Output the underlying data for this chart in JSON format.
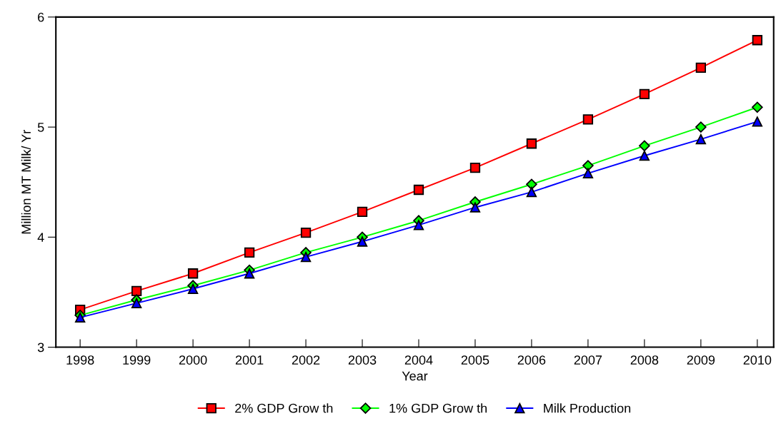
{
  "chart_data": {
    "type": "line",
    "xlabel": "Year",
    "ylabel": "Million MT Milk/ Yr",
    "categories": [
      "1998",
      "1999",
      "2000",
      "2001",
      "2002",
      "2003",
      "2004",
      "2005",
      "2006",
      "2007",
      "2008",
      "2009",
      "2010"
    ],
    "series": [
      {
        "name": "2% GDP Grow th",
        "color": "#ff0000",
        "marker": "square",
        "values": [
          3.34,
          3.51,
          3.67,
          3.86,
          4.04,
          4.23,
          4.43,
          4.63,
          4.85,
          5.07,
          5.3,
          5.54,
          5.79
        ]
      },
      {
        "name": "1% GDP Grow th",
        "color": "#00ff00",
        "marker": "diamond",
        "values": [
          3.29,
          3.43,
          3.56,
          3.7,
          3.86,
          4.0,
          4.15,
          4.32,
          4.48,
          4.65,
          4.83,
          5.0,
          5.18
        ]
      },
      {
        "name": "Milk Production",
        "color": "#0000ff",
        "marker": "triangle",
        "values": [
          3.27,
          3.4,
          3.53,
          3.67,
          3.82,
          3.96,
          4.11,
          4.27,
          4.41,
          4.58,
          4.74,
          4.89,
          5.05
        ]
      }
    ],
    "ylim": [
      3,
      6
    ],
    "yticks": [
      3,
      4,
      5,
      6
    ],
    "grid": false,
    "legend": "bottom",
    "line_style": "solid"
  }
}
